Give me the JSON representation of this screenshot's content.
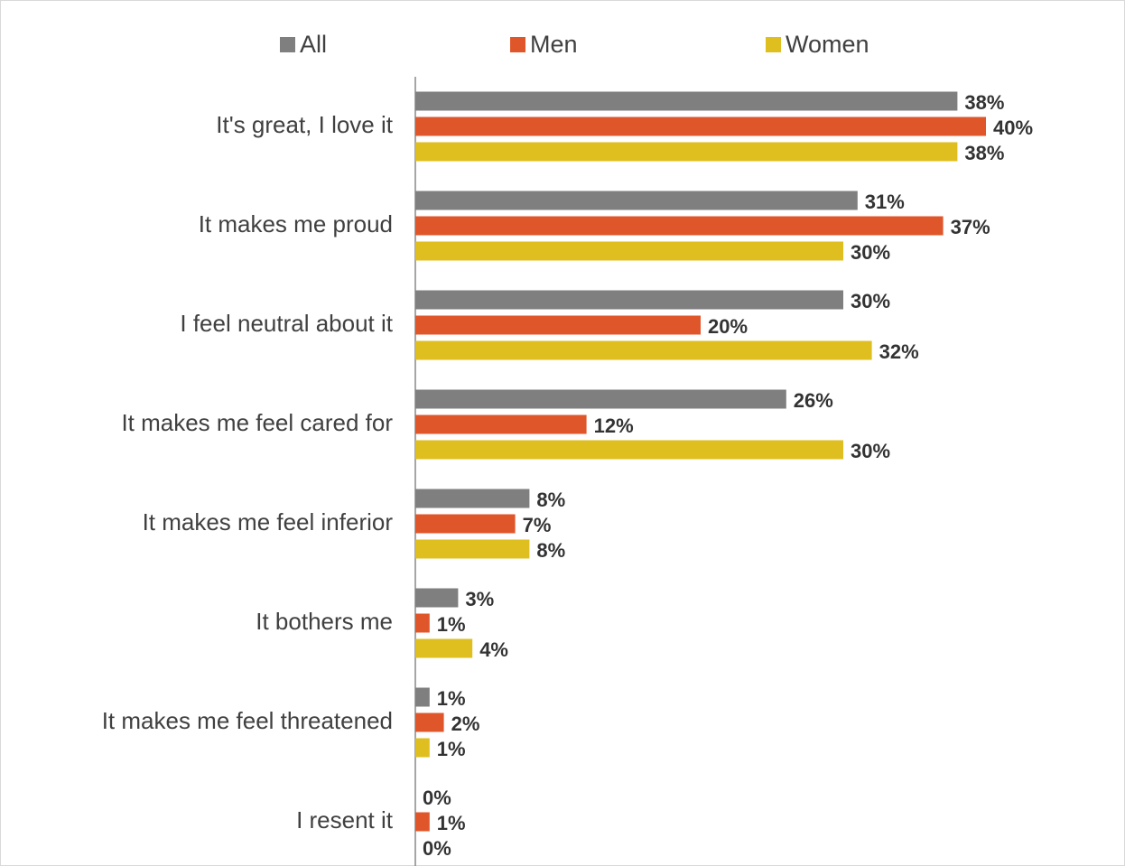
{
  "chart_data": {
    "type": "barh",
    "categories": [
      "It's great, I love it",
      "It makes me proud",
      "I feel neutral about it",
      "It makes me feel cared for",
      "It makes me feel inferior",
      "It bothers me",
      "It makes me feel threatened",
      "I resent it"
    ],
    "series": [
      {
        "name": "All",
        "color": "#7f7f7f",
        "values": [
          38,
          31,
          30,
          26,
          8,
          3,
          1,
          0
        ],
        "value_labels": [
          "38%",
          "31%",
          "30%",
          "26%",
          "8%",
          "3%",
          "1%",
          "0%"
        ]
      },
      {
        "name": "Men",
        "color": "#e0562b",
        "values": [
          40,
          37,
          20,
          12,
          7,
          1,
          2,
          1
        ],
        "value_labels": [
          "40%",
          "37%",
          "20%",
          "12%",
          "7%",
          "1%",
          "2%",
          "1%"
        ]
      },
      {
        "name": "Women",
        "color": "#dfbf1f",
        "values": [
          38,
          30,
          32,
          30,
          8,
          4,
          1,
          0
        ],
        "value_labels": [
          "38%",
          "30%",
          "32%",
          "30%",
          "8%",
          "4%",
          "1%",
          "0%"
        ]
      }
    ],
    "legend": "top"
  }
}
